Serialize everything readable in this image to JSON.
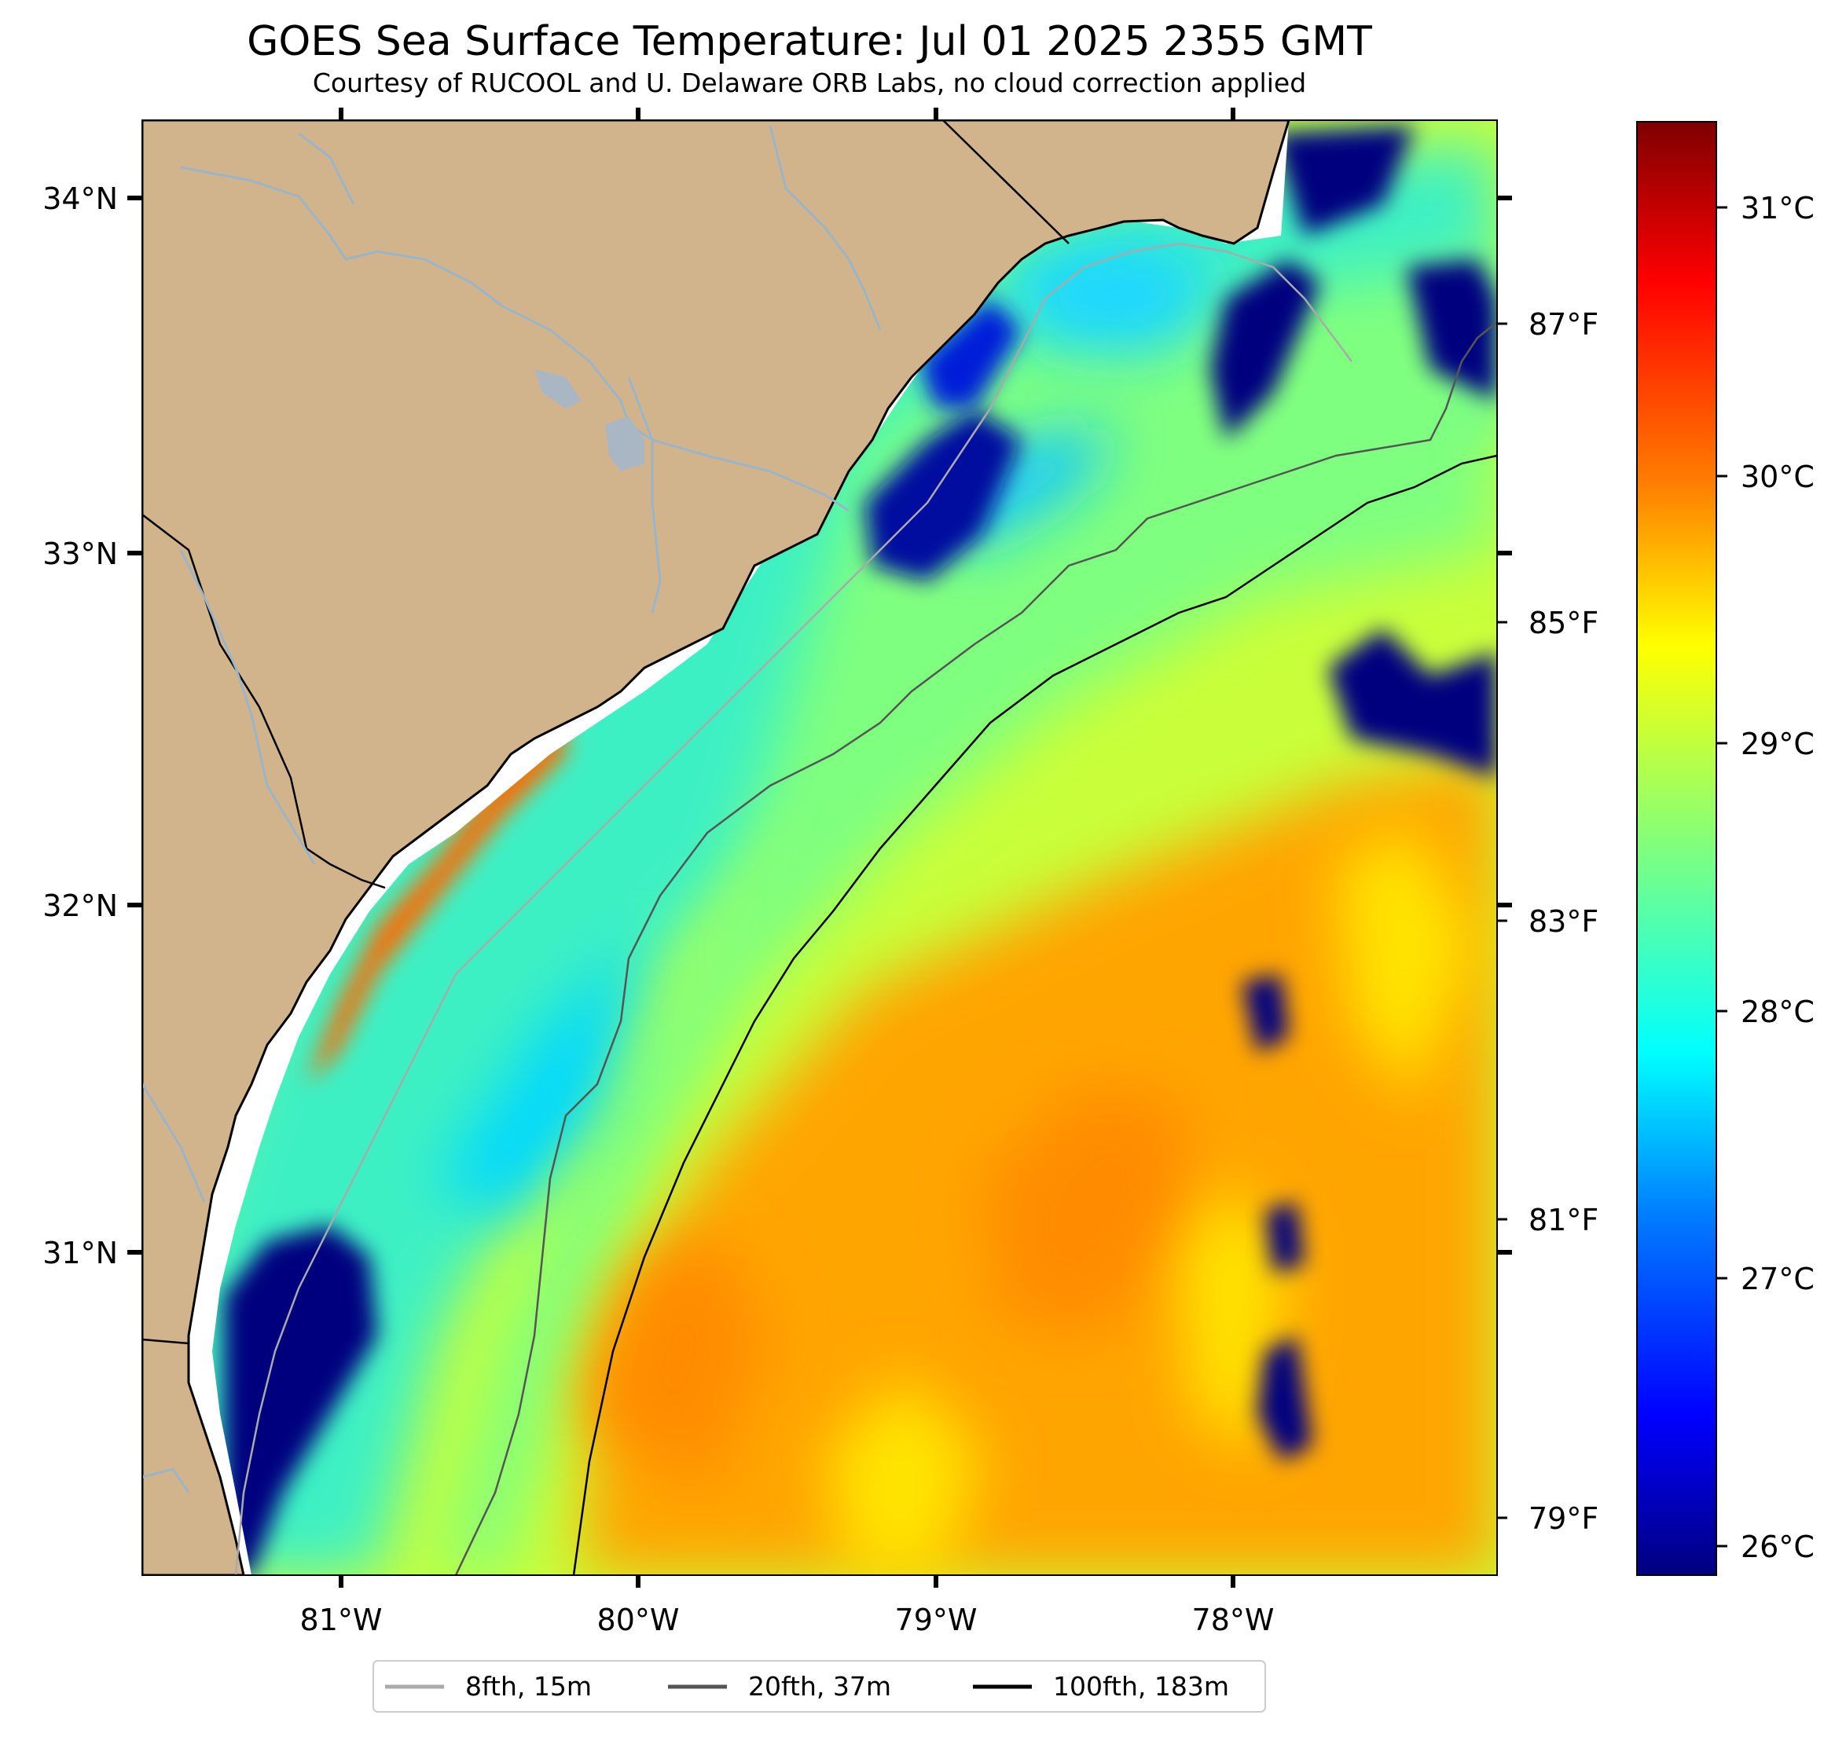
{
  "title": "GOES Sea Surface Temperature: Jul 01 2025 2355 GMT",
  "subtitle": "Courtesy of RUCOOL and U. Delaware ORB Labs, no cloud correction applied",
  "map": {
    "lon_labels": [
      "81°W",
      "80°W",
      "79°W",
      "78°W"
    ],
    "lat_labels": [
      "34°N",
      "33°N",
      "32°N",
      "31°N"
    ],
    "land_color": "#d2b48c",
    "land_mask_color": "#ffffff"
  },
  "fahrenheit_labels": [
    "87°F",
    "85°F",
    "83°F",
    "81°F",
    "79°F"
  ],
  "colorbar": {
    "labels": [
      "31°C",
      "30°C",
      "29°C",
      "28°C",
      "27°C",
      "26°C"
    ],
    "colormap": "jet",
    "stops": [
      "#00007f",
      "#0000ff",
      "#007fff",
      "#00ffff",
      "#7fff7f",
      "#ffff00",
      "#ff7f00",
      "#ff0000",
      "#7f0000"
    ]
  },
  "legend": {
    "items": [
      {
        "label": "8fth, 15m",
        "color": "#aaaaaa"
      },
      {
        "label": "20fth, 37m",
        "color": "#555555"
      },
      {
        "label": "100fth, 183m",
        "color": "#000000"
      }
    ]
  }
}
